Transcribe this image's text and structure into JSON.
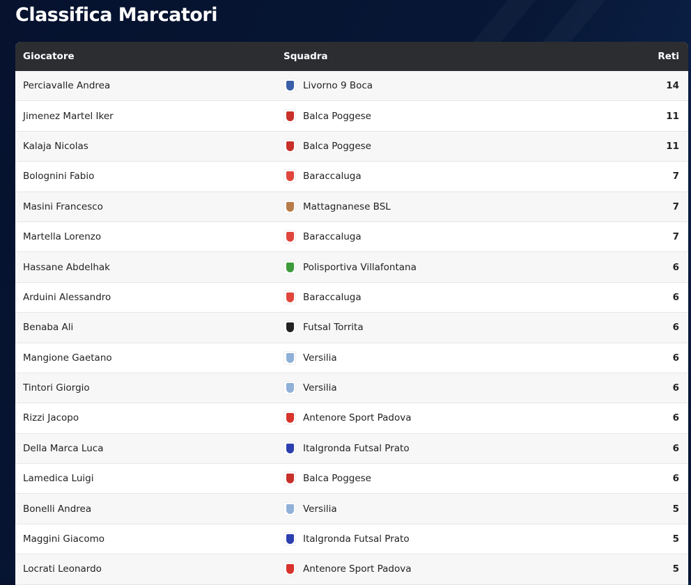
{
  "title": "Classifica Marcatori",
  "columns": {
    "player": "Giocatore",
    "team": "Squadra",
    "goals": "Reti"
  },
  "team_logo_colors": {
    "Livorno 9 Boca": "#3a5fa8",
    "Balca Poggese": "#c8302a",
    "Baraccaluga": "#e0463c",
    "Mattagnanese BSL": "#b87c4a",
    "Polisportiva Villafontana": "#3d9b3a",
    "Futsal Torrita": "#222222",
    "Versilia": "#8fb0d8",
    "Antenore Sport Padova": "#d8332c",
    "Italgronda Futsal Prato": "#2c3fb0"
  },
  "rows": [
    {
      "player": "Perciavalle Andrea",
      "team": "Livorno 9 Boca",
      "goals": "14"
    },
    {
      "player": "Jimenez Martel Iker",
      "team": "Balca Poggese",
      "goals": "11"
    },
    {
      "player": "Kalaja Nicolas",
      "team": "Balca Poggese",
      "goals": "11"
    },
    {
      "player": "Bolognini Fabio",
      "team": "Baraccaluga",
      "goals": "7"
    },
    {
      "player": "Masini Francesco",
      "team": "Mattagnanese BSL",
      "goals": "7"
    },
    {
      "player": "Martella Lorenzo",
      "team": "Baraccaluga",
      "goals": "7"
    },
    {
      "player": "Hassane Abdelhak",
      "team": "Polisportiva Villafontana",
      "goals": "6"
    },
    {
      "player": "Arduini Alessandro",
      "team": "Baraccaluga",
      "goals": "6"
    },
    {
      "player": "Benaba Ali",
      "team": "Futsal Torrita",
      "goals": "6"
    },
    {
      "player": "Mangione Gaetano",
      "team": "Versilia",
      "goals": "6"
    },
    {
      "player": "Tintori Giorgio",
      "team": "Versilia",
      "goals": "6"
    },
    {
      "player": "Rizzi Jacopo",
      "team": "Antenore Sport Padova",
      "goals": "6"
    },
    {
      "player": "Della Marca Luca",
      "team": "Italgronda Futsal Prato",
      "goals": "6"
    },
    {
      "player": "Lamedica Luigi",
      "team": "Balca Poggese",
      "goals": "6"
    },
    {
      "player": "Bonelli Andrea",
      "team": "Versilia",
      "goals": "5"
    },
    {
      "player": "Maggini Giacomo",
      "team": "Italgronda Futsal Prato",
      "goals": "5"
    },
    {
      "player": "Locrati Leonardo",
      "team": "Antenore Sport Padova",
      "goals": "5"
    }
  ]
}
